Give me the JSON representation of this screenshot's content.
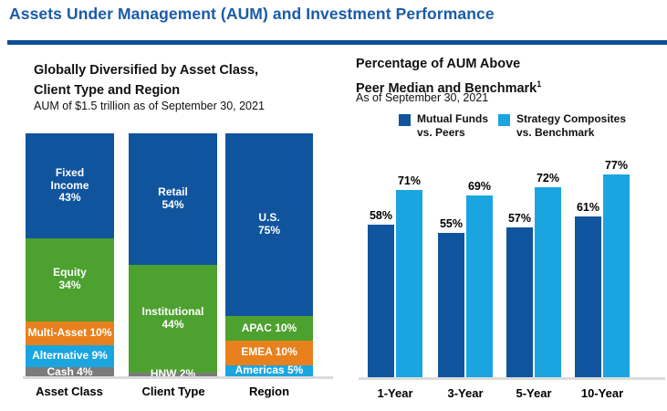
{
  "page": {
    "title": "Assets Under Management (AUM) and Investment Performance"
  },
  "colors": {
    "title_blue": "#1A5BA9",
    "rule_blue": "#0E4E96",
    "dark_blue": "#10549E",
    "light_blue": "#1AA5E1",
    "green": "#4CA12F",
    "orange": "#E8801D",
    "gray": "#7B7B7B",
    "axis_line": "#DBDBDB"
  },
  "left_panel": {
    "title_lines": [
      "Globally Diversified by Asset Class,",
      "Client Type and Region"
    ],
    "subtitle": "AUM of $1.5 trillion as of September 30, 2021"
  },
  "right_panel": {
    "title_lines": [
      "Percentage of AUM Above",
      "Peer Median and Benchmark"
    ],
    "title_superscript": "1",
    "subtitle": "As of September 30, 2021",
    "legend": [
      {
        "lines": [
          "Mutual Funds",
          "vs. Peers"
        ],
        "color": "#10549E"
      },
      {
        "lines": [
          "Strategy Composites",
          "vs. Benchmark"
        ],
        "color": "#1AA5E1"
      }
    ]
  },
  "chart_data": [
    {
      "type": "bar",
      "variant": "stacked-percent",
      "title": "Globally Diversified by Asset Class, Client Type and Region",
      "subtitle": "AUM of $1.5 trillion as of September 30, 2021",
      "unit": "%",
      "ylim": [
        0,
        100
      ],
      "grid": false,
      "categories": [
        "Asset Class",
        "Client Type",
        "Region"
      ],
      "stacks": [
        {
          "category": "Asset Class",
          "segments": [
            {
              "label": "Fixed Income",
              "value": 43,
              "color": "#10549E",
              "display_lines": [
                "Fixed",
                "Income",
                "43%"
              ]
            },
            {
              "label": "Equity",
              "value": 34,
              "color": "#4CA12F",
              "display_lines": [
                "Equity",
                "34%"
              ]
            },
            {
              "label": "Multi-Asset",
              "value": 10,
              "color": "#E8801D",
              "display_lines": [
                "Multi-Asset 10%"
              ]
            },
            {
              "label": "Alternative",
              "value": 9,
              "color": "#1AA5E1",
              "display_lines": [
                "Alternative 9%"
              ]
            },
            {
              "label": "Cash",
              "value": 4,
              "color": "#7B7B7B",
              "display_lines": [
                "Cash 4%"
              ]
            }
          ]
        },
        {
          "category": "Client Type",
          "segments": [
            {
              "label": "Retail",
              "value": 54,
              "color": "#10549E",
              "display_lines": [
                "Retail",
                "54%"
              ]
            },
            {
              "label": "Institutional",
              "value": 44,
              "color": "#4CA12F",
              "display_lines": [
                "Institutional",
                "44%"
              ]
            },
            {
              "label": "HNW",
              "value": 2,
              "color": "#7B7B7B",
              "display_lines": [
                "HNW 2%"
              ]
            }
          ]
        },
        {
          "category": "Region",
          "segments": [
            {
              "label": "U.S.",
              "value": 75,
              "color": "#10549E",
              "display_lines": [
                "U.S.",
                "75%"
              ]
            },
            {
              "label": "APAC",
              "value": 10,
              "color": "#4CA12F",
              "display_lines": [
                "APAC 10%"
              ]
            },
            {
              "label": "EMEA",
              "value": 10,
              "color": "#E8801D",
              "display_lines": [
                "EMEA 10%"
              ]
            },
            {
              "label": "Americas",
              "value": 5,
              "color": "#1AA5E1",
              "display_lines": [
                "Americas 5%"
              ]
            }
          ]
        }
      ]
    },
    {
      "type": "bar",
      "variant": "grouped",
      "title": "Percentage of AUM Above Peer Median and Benchmark",
      "subtitle": "As of September 30, 2021",
      "unit": "%",
      "ylim": [
        0,
        100
      ],
      "grid": false,
      "legend_position": "top",
      "categories": [
        "1-Year",
        "3-Year",
        "5-Year",
        "10-Year"
      ],
      "series": [
        {
          "name": "Mutual Funds vs. Peers",
          "color": "#10549E",
          "values": [
            58,
            55,
            57,
            61
          ]
        },
        {
          "name": "Strategy Composites vs. Benchmark",
          "color": "#1AA5E1",
          "values": [
            71,
            69,
            72,
            77
          ]
        }
      ]
    }
  ]
}
